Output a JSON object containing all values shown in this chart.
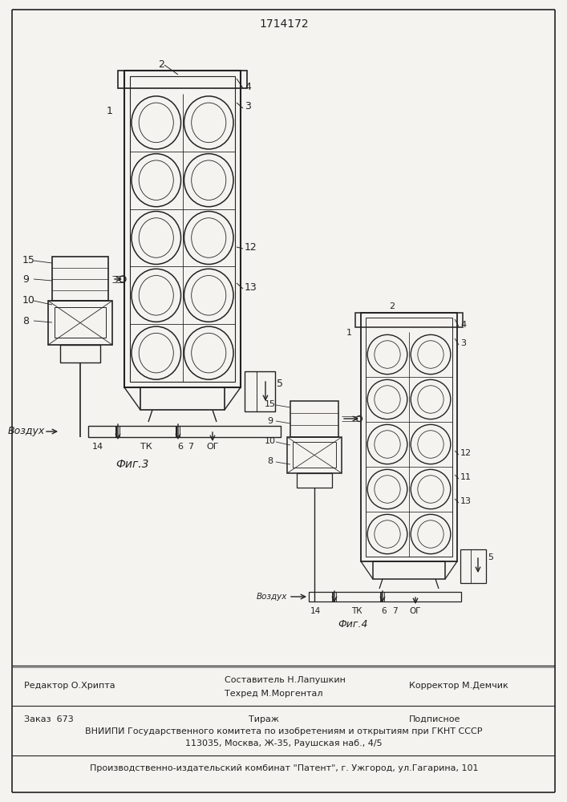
{
  "patent_number": "1714172",
  "fig3_label": "Фиг.3",
  "fig4_label": "Фиг.4",
  "vozduh_label": "Воздух",
  "og_label": "ОГ",
  "tk_label": "ТК",
  "editor_line": "Редактор О.Хрипта",
  "composer_line": "Составитель Н.Лапушкин",
  "techred_line": "Техред М.Моргентал",
  "corrector_line": "Корректор М.Демчик",
  "zakaz_line": "Заказ  673",
  "tirazh_line": "Тираж",
  "podpisnoe_line": "Подписное",
  "vniiipi_line": "ВНИИПИ Государственного комитета по изобретениям и открытиям при ГКНТ СССР",
  "address_line": "113035, Москва, Ж-35, Раушская наб., 4/5",
  "proizvod_line": "Производственно-издательский комбинат \"Патент\", г. Ужгород, ул.Гагарина, 101",
  "bg_color": "#f5f3ef",
  "line_color": "#222222"
}
